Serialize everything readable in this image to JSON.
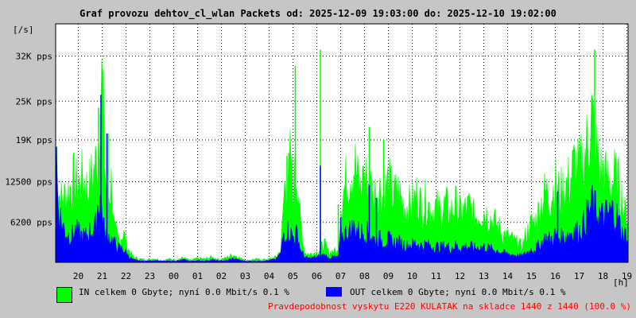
{
  "chart_data": {
    "type": "area",
    "title": "Graf provozu dehtov_cl_wlan Packets od: 2025-12-09 19:03:00 do: 2025-12-10 19:02:00",
    "ylabel": "[/s]",
    "xlabel": "[h]",
    "y_ticks": [
      {
        "value": 6200,
        "label": "6200 pps"
      },
      {
        "value": 12500,
        "label": "12500 pps"
      },
      {
        "value": 19000,
        "label": "19K pps"
      },
      {
        "value": 25000,
        "label": "25K pps"
      },
      {
        "value": 32000,
        "label": "32K pps"
      }
    ],
    "ylim": [
      0,
      37000
    ],
    "xlim": [
      19.05,
      43.05
    ],
    "x_ticks": [
      {
        "value": 20,
        "label": "20"
      },
      {
        "value": 21,
        "label": "21"
      },
      {
        "value": 22,
        "label": "22"
      },
      {
        "value": 23,
        "label": "23"
      },
      {
        "value": 24,
        "label": "00"
      },
      {
        "value": 25,
        "label": "01"
      },
      {
        "value": 26,
        "label": "02"
      },
      {
        "value": 27,
        "label": "03"
      },
      {
        "value": 28,
        "label": "04"
      },
      {
        "value": 29,
        "label": "05"
      },
      {
        "value": 30,
        "label": "06"
      },
      {
        "value": 31,
        "label": "07"
      },
      {
        "value": 32,
        "label": "08"
      },
      {
        "value": 33,
        "label": "09"
      },
      {
        "value": 34,
        "label": "10"
      },
      {
        "value": 35,
        "label": "11"
      },
      {
        "value": 36,
        "label": "12"
      },
      {
        "value": 37,
        "label": "13"
      },
      {
        "value": 38,
        "label": "14"
      },
      {
        "value": 39,
        "label": "15"
      },
      {
        "value": 40,
        "label": "16"
      },
      {
        "value": 41,
        "label": "17"
      },
      {
        "value": 42,
        "label": "18"
      },
      {
        "value": 43,
        "label": "19"
      }
    ],
    "grid": true,
    "series": [
      {
        "name": "IN",
        "color": "#00ff00",
        "points": [
          [
            19.05,
            12000
          ],
          [
            19.3,
            9500
          ],
          [
            19.6,
            11000
          ],
          [
            19.8,
            12500
          ],
          [
            20.0,
            11500
          ],
          [
            20.2,
            13000
          ],
          [
            20.4,
            11000
          ],
          [
            20.6,
            13500
          ],
          [
            20.8,
            16000
          ],
          [
            20.9,
            25000
          ],
          [
            21.0,
            28000
          ],
          [
            21.1,
            16000
          ],
          [
            21.2,
            9000
          ],
          [
            21.4,
            12500
          ],
          [
            21.5,
            5000
          ],
          [
            21.7,
            3500
          ],
          [
            21.9,
            4500
          ],
          [
            22.1,
            2000
          ],
          [
            22.3,
            800
          ],
          [
            22.6,
            500
          ],
          [
            22.9,
            400
          ],
          [
            23.2,
            600
          ],
          [
            23.5,
            300
          ],
          [
            23.8,
            500
          ],
          [
            24.1,
            400
          ],
          [
            24.4,
            700
          ],
          [
            24.7,
            300
          ],
          [
            25.0,
            600
          ],
          [
            25.3,
            500
          ],
          [
            25.6,
            800
          ],
          [
            25.9,
            400
          ],
          [
            26.2,
            700
          ],
          [
            26.5,
            1200
          ],
          [
            26.8,
            600
          ],
          [
            27.1,
            300
          ],
          [
            27.4,
            500
          ],
          [
            27.7,
            400
          ],
          [
            28.0,
            500
          ],
          [
            28.3,
            800
          ],
          [
            28.5,
            2000
          ],
          [
            28.6,
            9000
          ],
          [
            28.7,
            14000
          ],
          [
            28.8,
            12000
          ],
          [
            28.9,
            16000
          ],
          [
            29.0,
            10000
          ],
          [
            29.1,
            15000
          ],
          [
            29.2,
            13000
          ],
          [
            29.3,
            6000
          ],
          [
            29.5,
            1500
          ],
          [
            29.7,
            1200
          ],
          [
            29.9,
            1500
          ],
          [
            30.1,
            1800
          ],
          [
            30.3,
            3000
          ],
          [
            30.5,
            1500
          ],
          [
            30.7,
            1800
          ],
          [
            30.9,
            1500
          ],
          [
            31.0,
            9000
          ],
          [
            31.2,
            12000
          ],
          [
            31.4,
            14000
          ],
          [
            31.6,
            15000
          ],
          [
            31.8,
            11000
          ],
          [
            32.0,
            13000
          ],
          [
            32.2,
            12000
          ],
          [
            32.4,
            10500
          ],
          [
            32.6,
            11500
          ],
          [
            32.8,
            10000
          ],
          [
            33.0,
            12500
          ],
          [
            33.2,
            10000
          ],
          [
            33.4,
            11000
          ],
          [
            33.6,
            9000
          ],
          [
            33.8,
            8500
          ],
          [
            34.0,
            9000
          ],
          [
            34.2,
            10500
          ],
          [
            34.4,
            8500
          ],
          [
            34.6,
            9500
          ],
          [
            34.8,
            8000
          ],
          [
            35.0,
            8500
          ],
          [
            35.2,
            7500
          ],
          [
            35.4,
            9000
          ],
          [
            35.6,
            7500
          ],
          [
            35.8,
            9000
          ],
          [
            36.0,
            7500
          ],
          [
            36.2,
            8000
          ],
          [
            36.4,
            8500
          ],
          [
            36.6,
            7000
          ],
          [
            36.8,
            7500
          ],
          [
            37.0,
            8000
          ],
          [
            37.2,
            7000
          ],
          [
            37.4,
            6500
          ],
          [
            37.6,
            5500
          ],
          [
            37.8,
            4500
          ],
          [
            38.0,
            4000
          ],
          [
            38.2,
            3500
          ],
          [
            38.4,
            3000
          ],
          [
            38.6,
            2500
          ],
          [
            38.8,
            4500
          ],
          [
            39.0,
            6000
          ],
          [
            39.2,
            6500
          ],
          [
            39.4,
            9000
          ],
          [
            39.6,
            11000
          ],
          [
            39.8,
            10000
          ],
          [
            40.0,
            12000
          ],
          [
            40.2,
            10500
          ],
          [
            40.4,
            11500
          ],
          [
            40.6,
            12500
          ],
          [
            40.8,
            15000
          ],
          [
            41.0,
            14000
          ],
          [
            41.2,
            16000
          ],
          [
            41.4,
            19000
          ],
          [
            41.5,
            24000
          ],
          [
            41.6,
            20000
          ],
          [
            41.7,
            17000
          ],
          [
            41.9,
            14000
          ],
          [
            42.1,
            13000
          ],
          [
            42.3,
            12000
          ],
          [
            42.5,
            13000
          ],
          [
            42.7,
            11500
          ],
          [
            42.9,
            7500
          ],
          [
            43.05,
            7000
          ]
        ],
        "spikes": [
          [
            20.85,
            24000
          ],
          [
            21.05,
            27000
          ],
          [
            21.25,
            20000
          ],
          [
            29.1,
            30500
          ],
          [
            30.15,
            33000
          ],
          [
            30.9,
            9000
          ],
          [
            32.2,
            21000
          ],
          [
            32.8,
            19000
          ],
          [
            41.65,
            33000
          ],
          [
            31.95,
            15000
          ],
          [
            19.1,
            18000
          ],
          [
            28.75,
            16500
          ]
        ]
      },
      {
        "name": "OUT",
        "color": "#0000ff",
        "points": [
          [
            19.05,
            20000
          ],
          [
            19.15,
            9000
          ],
          [
            19.3,
            6000
          ],
          [
            19.5,
            4500
          ],
          [
            19.7,
            4000
          ],
          [
            19.9,
            5000
          ],
          [
            20.1,
            4200
          ],
          [
            20.3,
            4000
          ],
          [
            20.5,
            4800
          ],
          [
            20.7,
            5200
          ],
          [
            20.9,
            11000
          ],
          [
            21.0,
            8000
          ],
          [
            21.1,
            4500
          ],
          [
            21.3,
            4000
          ],
          [
            21.5,
            3000
          ],
          [
            21.7,
            2200
          ],
          [
            21.9,
            2000
          ],
          [
            22.1,
            1000
          ],
          [
            22.3,
            400
          ],
          [
            22.6,
            200
          ],
          [
            22.9,
            200
          ],
          [
            23.2,
            300
          ],
          [
            23.5,
            150
          ],
          [
            23.8,
            200
          ],
          [
            24.1,
            200
          ],
          [
            24.4,
            400
          ],
          [
            24.7,
            150
          ],
          [
            25.0,
            300
          ],
          [
            25.3,
            200
          ],
          [
            25.6,
            400
          ],
          [
            25.9,
            200
          ],
          [
            26.2,
            300
          ],
          [
            26.5,
            600
          ],
          [
            26.8,
            300
          ],
          [
            27.1,
            150
          ],
          [
            27.4,
            200
          ],
          [
            27.7,
            200
          ],
          [
            28.0,
            300
          ],
          [
            28.3,
            500
          ],
          [
            28.5,
            1500
          ],
          [
            28.6,
            4500
          ],
          [
            28.8,
            5000
          ],
          [
            29.0,
            4000
          ],
          [
            29.2,
            4500
          ],
          [
            29.3,
            2000
          ],
          [
            29.5,
            800
          ],
          [
            29.7,
            600
          ],
          [
            29.9,
            800
          ],
          [
            30.1,
            900
          ],
          [
            30.3,
            1200
          ],
          [
            30.5,
            700
          ],
          [
            30.7,
            900
          ],
          [
            30.9,
            700
          ],
          [
            31.0,
            4000
          ],
          [
            31.2,
            4500
          ],
          [
            31.4,
            5000
          ],
          [
            31.6,
            5500
          ],
          [
            31.8,
            4500
          ],
          [
            32.0,
            4800
          ],
          [
            32.2,
            4500
          ],
          [
            32.4,
            3500
          ],
          [
            32.6,
            3800
          ],
          [
            32.8,
            3200
          ],
          [
            33.0,
            3600
          ],
          [
            33.2,
            3000
          ],
          [
            33.4,
            3200
          ],
          [
            33.6,
            2800
          ],
          [
            33.8,
            2600
          ],
          [
            34.0,
            2800
          ],
          [
            34.2,
            3000
          ],
          [
            34.4,
            2600
          ],
          [
            34.6,
            2800
          ],
          [
            34.8,
            2400
          ],
          [
            35.0,
            2500
          ],
          [
            35.2,
            2300
          ],
          [
            35.4,
            2600
          ],
          [
            35.6,
            2200
          ],
          [
            35.8,
            2600
          ],
          [
            36.0,
            2300
          ],
          [
            36.2,
            2400
          ],
          [
            36.4,
            2500
          ],
          [
            36.6,
            2200
          ],
          [
            36.8,
            2300
          ],
          [
            37.0,
            2400
          ],
          [
            37.2,
            2200
          ],
          [
            37.4,
            2000
          ],
          [
            37.6,
            1800
          ],
          [
            37.8,
            1500
          ],
          [
            38.0,
            1300
          ],
          [
            38.2,
            1200
          ],
          [
            38.4,
            1100
          ],
          [
            38.6,
            1000
          ],
          [
            38.8,
            1500
          ],
          [
            39.0,
            2000
          ],
          [
            39.2,
            2200
          ],
          [
            39.4,
            3000
          ],
          [
            39.6,
            3800
          ],
          [
            39.8,
            3500
          ],
          [
            40.0,
            4200
          ],
          [
            40.2,
            3800
          ],
          [
            40.4,
            4000
          ],
          [
            40.6,
            4500
          ],
          [
            40.8,
            5000
          ],
          [
            41.0,
            4800
          ],
          [
            41.2,
            6000
          ],
          [
            41.4,
            8000
          ],
          [
            41.6,
            8500
          ],
          [
            41.8,
            7500
          ],
          [
            42.0,
            7000
          ],
          [
            42.2,
            7500
          ],
          [
            42.4,
            8000
          ],
          [
            42.6,
            7000
          ],
          [
            42.8,
            4500
          ],
          [
            43.05,
            4000
          ]
        ],
        "spikes": [
          [
            20.95,
            26000
          ],
          [
            21.2,
            20000
          ],
          [
            30.15,
            15000
          ],
          [
            32.2,
            12000
          ],
          [
            32.5,
            10000
          ],
          [
            41.55,
            12000
          ],
          [
            40.1,
            11000
          ],
          [
            31.0,
            7000
          ]
        ]
      }
    ],
    "legend_placement": "bottom-left"
  },
  "legend": {
    "in_text": "IN celkem 0 Gbyte; nyní   0.0 Mbit/s 0.1 %",
    "out_text": "OUT celkem 0 Gbyte; nyní   0.0 Mbit/s 0.1 %"
  },
  "footer": {
    "note": "Pravdepodobnost vyskytu E220 KULATAK na skladce 1440 z 1440 (100.0 %)",
    "note_color": "#ff0000"
  }
}
